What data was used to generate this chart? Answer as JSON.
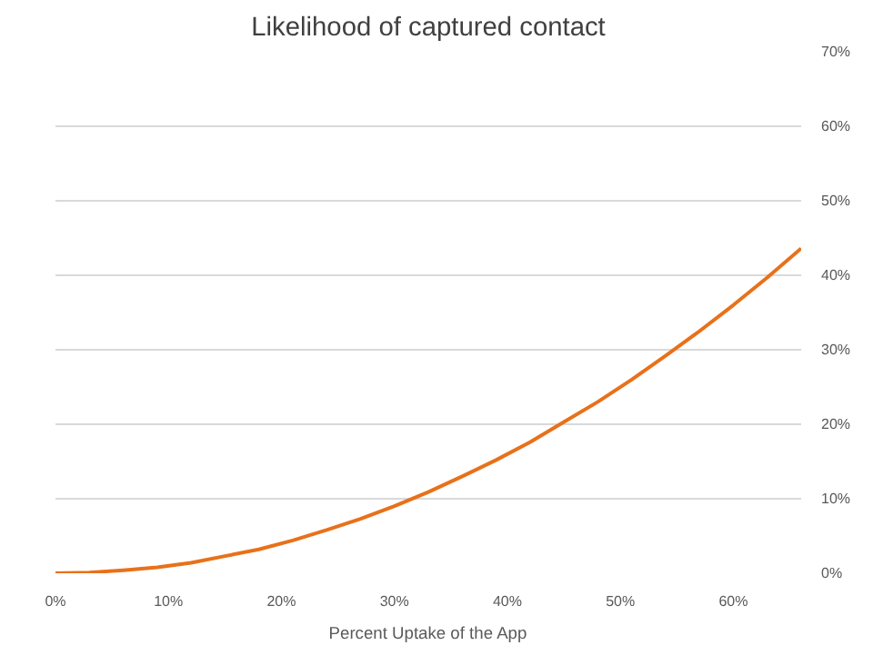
{
  "chart_data": {
    "type": "line",
    "title": "Likelihood of captured contact",
    "xlabel": "Percent Uptake of the App",
    "x": [
      0,
      3,
      6,
      9,
      12,
      15,
      18,
      21,
      24,
      27,
      30,
      33,
      36,
      39,
      42,
      45,
      48,
      51,
      54,
      57,
      60,
      63,
      66
    ],
    "series": [
      {
        "color": "#e8711a",
        "values": [
          0,
          0.1,
          0.4,
          0.8,
          1.4,
          2.3,
          3.2,
          4.4,
          5.8,
          7.3,
          9.0,
          10.9,
          13.0,
          15.2,
          17.6,
          20.3,
          23.0,
          26.0,
          29.2,
          32.5,
          36.0,
          39.7,
          43.6
        ]
      }
    ],
    "xlim": [
      0,
      66
    ],
    "xticks": [
      {
        "value": 0,
        "label": "0%"
      },
      {
        "value": 10,
        "label": "10%"
      },
      {
        "value": 20,
        "label": "20%"
      },
      {
        "value": 30,
        "label": "30%"
      },
      {
        "value": 40,
        "label": "40%"
      },
      {
        "value": 50,
        "label": "50%"
      },
      {
        "value": 60,
        "label": "60%"
      }
    ],
    "ylim": [
      0,
      70
    ],
    "yticks": [
      {
        "value": 0,
        "label": "0%"
      },
      {
        "value": 10,
        "label": "10%"
      },
      {
        "value": 20,
        "label": "20%"
      },
      {
        "value": 30,
        "label": "30%"
      },
      {
        "value": 40,
        "label": "40%"
      },
      {
        "value": 50,
        "label": "50%"
      },
      {
        "value": 60,
        "label": "60%"
      },
      {
        "value": 70,
        "label": "70%"
      }
    ],
    "grid": "y"
  }
}
